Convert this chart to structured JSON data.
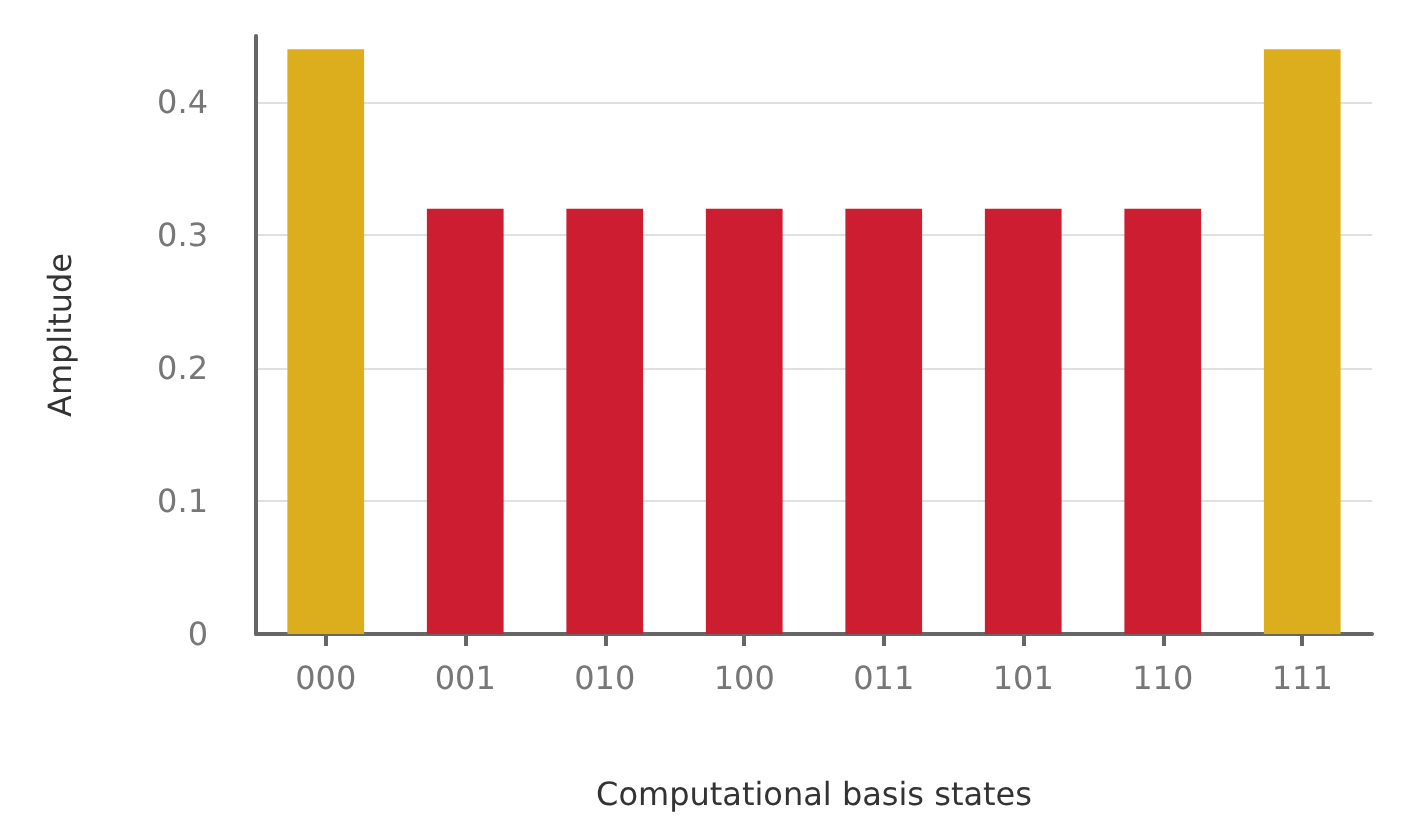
{
  "chart_data": {
    "type": "bar",
    "xlabel": "Computational basis states",
    "ylabel": "Amplitude",
    "categories": [
      "000",
      "001",
      "010",
      "100",
      "011",
      "101",
      "110",
      "111"
    ],
    "values": [
      0.44,
      0.32,
      0.32,
      0.32,
      0.32,
      0.32,
      0.32,
      0.44
    ],
    "colors": [
      "#dcae1d",
      "#cc1e30",
      "#cc1e30",
      "#cc1e30",
      "#cc1e30",
      "#cc1e30",
      "#cc1e30",
      "#dcae1d"
    ],
    "ylim": [
      0,
      0.45
    ],
    "yticks": [
      0,
      0.1,
      0.2,
      0.3,
      0.4
    ],
    "grid": "y"
  }
}
